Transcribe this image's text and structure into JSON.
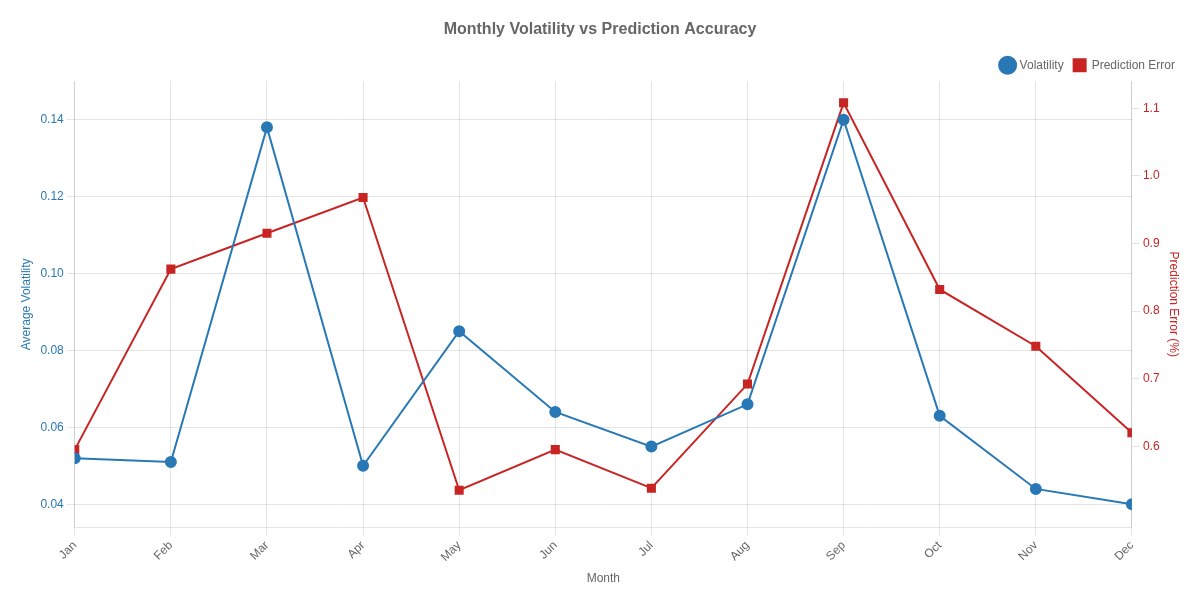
{
  "chart_data": {
    "type": "line",
    "title": "Monthly Volatility vs Prediction Accuracy",
    "x_label": "Month",
    "y_label": "Average Volatility",
    "y2_label": "Prediction Error (%)",
    "categories": [
      "Jan",
      "Feb",
      "Mar",
      "Apr",
      "May",
      "Jun",
      "Jul",
      "Aug",
      "Sep",
      "Oct",
      "Nov",
      "Dec"
    ],
    "series": [
      {
        "name": "Volatility",
        "color": "#2878b5",
        "marker": "circle",
        "line_style": "solid",
        "axis": "y",
        "values": [
          0.052,
          0.051,
          0.138,
          0.05,
          0.085,
          0.064,
          0.055,
          0.066,
          0.14,
          0.063,
          0.044,
          0.04
        ]
      },
      {
        "name": "Prediction Error",
        "color": "#c82423",
        "marker": "square",
        "line_style": "solid",
        "axis": "y2",
        "values": [
          0.595,
          0.862,
          0.915,
          0.968,
          0.535,
          0.595,
          0.538,
          0.692,
          1.108,
          0.832,
          0.748,
          0.62
        ]
      }
    ],
    "ylim": [
      0.034,
      0.15
    ],
    "yticks": [
      0.04,
      0.06,
      0.08,
      {
        "value": 0.1,
        "label": "0.10"
      },
      0.12,
      0.14
    ],
    "y2lim": [
      0.48,
      1.14
    ],
    "y2ticks": [
      0.6,
      0.7,
      0.8,
      0.9,
      {
        "value": 1,
        "label": "1.0"
      },
      1.1
    ],
    "grid": true,
    "legend": "upper right"
  }
}
